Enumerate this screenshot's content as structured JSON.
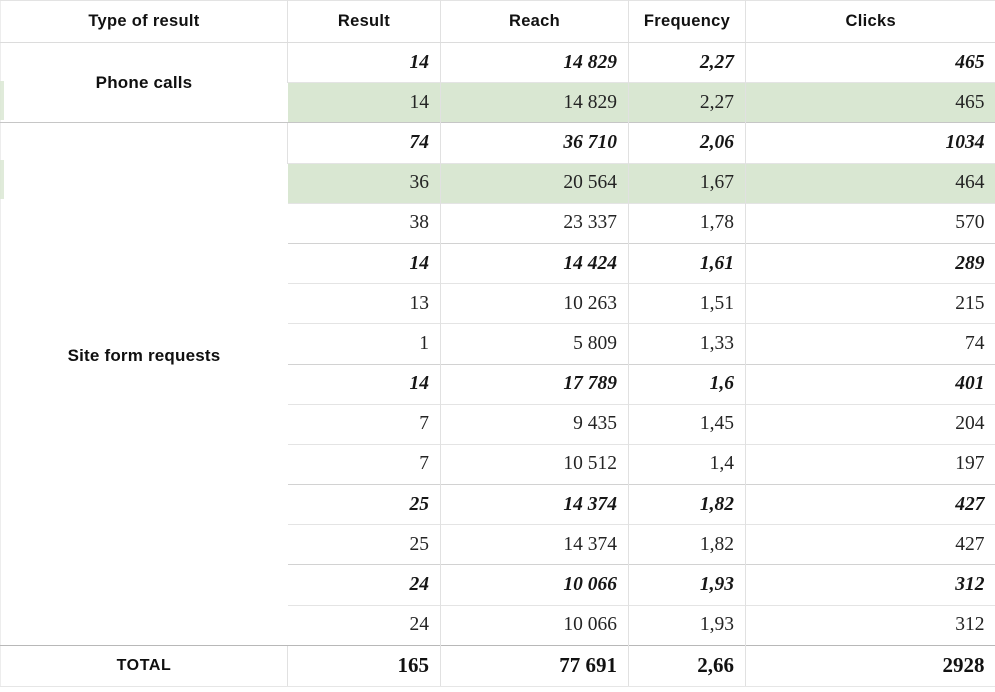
{
  "colors": {
    "highlight_green": "#d9e7d2",
    "grid_line": "#e4e4e4",
    "section_line": "#c6c6c6",
    "total_line": "#b8b8b8",
    "text": "#242424"
  },
  "chart_data": {
    "type": "table",
    "columns": [
      "Type of result",
      "Result",
      "Reach",
      "Frequency",
      "Clicks"
    ],
    "sections": [
      {
        "type_label": "Phone calls",
        "rows": [
          {
            "result": "14",
            "reach": "14 829",
            "frequency": "2,27",
            "clicks": "465",
            "style": "summary",
            "highlight": false
          },
          {
            "result": "14",
            "reach": "14 829",
            "frequency": "2,27",
            "clicks": "465",
            "style": "normal",
            "highlight": true
          }
        ]
      },
      {
        "type_label": "Site form requests",
        "rows": [
          {
            "result": "74",
            "reach": "36 710",
            "frequency": "2,06",
            "clicks": "1034",
            "style": "summary",
            "highlight": false
          },
          {
            "result": "36",
            "reach": "20 564",
            "frequency": "1,67",
            "clicks": "464",
            "style": "normal",
            "highlight": true
          },
          {
            "result": "38",
            "reach": "23 337",
            "frequency": "1,78",
            "clicks": "570",
            "style": "normal",
            "highlight": false
          },
          {
            "result": "14",
            "reach": "14 424",
            "frequency": "1,61",
            "clicks": "289",
            "style": "summary",
            "highlight": false
          },
          {
            "result": "13",
            "reach": "10 263",
            "frequency": "1,51",
            "clicks": "215",
            "style": "normal",
            "highlight": false
          },
          {
            "result": "1",
            "reach": "5 809",
            "frequency": "1,33",
            "clicks": "74",
            "style": "normal",
            "highlight": false
          },
          {
            "result": "14",
            "reach": "17 789",
            "frequency": "1,6",
            "clicks": "401",
            "style": "summary",
            "highlight": false
          },
          {
            "result": "7",
            "reach": "9 435",
            "frequency": "1,45",
            "clicks": "204",
            "style": "normal",
            "highlight": false
          },
          {
            "result": "7",
            "reach": "10 512",
            "frequency": "1,4",
            "clicks": "197",
            "style": "normal",
            "highlight": false
          },
          {
            "result": "25",
            "reach": "14 374",
            "frequency": "1,82",
            "clicks": "427",
            "style": "summary",
            "highlight": false
          },
          {
            "result": "25",
            "reach": "14 374",
            "frequency": "1,82",
            "clicks": "427",
            "style": "normal",
            "highlight": false
          },
          {
            "result": "24",
            "reach": "10 066",
            "frequency": "1,93",
            "clicks": "312",
            "style": "summary",
            "highlight": false
          },
          {
            "result": "24",
            "reach": "10 066",
            "frequency": "1,93",
            "clicks": "312",
            "style": "normal",
            "highlight": false
          }
        ]
      }
    ],
    "total": {
      "label": "TOTAL",
      "result": "165",
      "reach": "77 691",
      "frequency": "2,66",
      "clicks": "2928"
    }
  }
}
